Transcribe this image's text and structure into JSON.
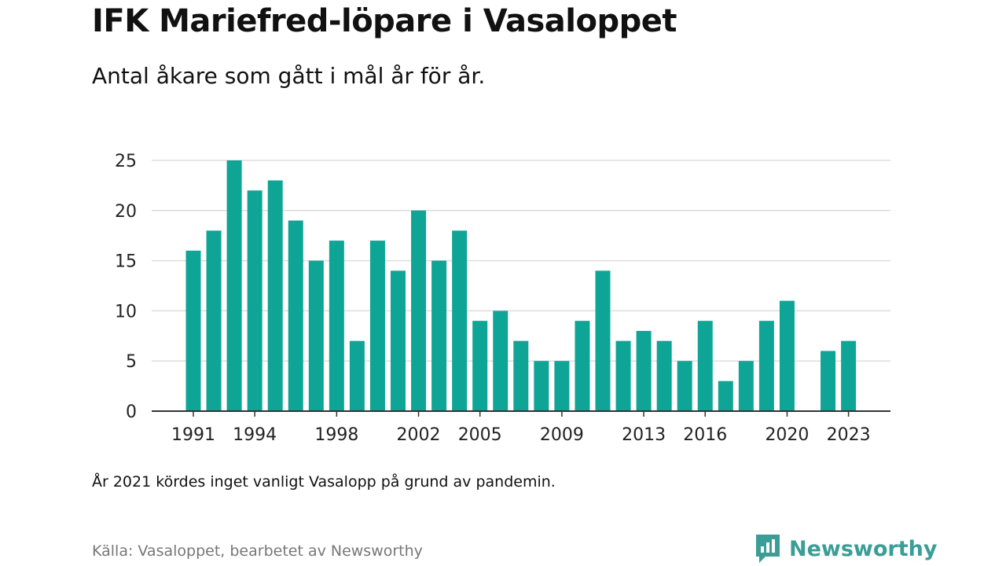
{
  "title": "IFK Mariefred-löpare i Vasaloppet",
  "subtitle": "Antal åkare som gått i mål år för år.",
  "note": "År 2021 kördes inget vanligt Vasalopp på grund av pandemin.",
  "source": "Källa: Vasaloppet, bearbetet av Newsworthy",
  "brand": {
    "name": "Newsworthy",
    "icon": "newsworthy-logo-icon"
  },
  "colors": {
    "bar": "#0fa596",
    "grid": "#dddddd",
    "axis": "#333333",
    "brand": "#3a9e96"
  },
  "chart_data": {
    "type": "bar",
    "x": [
      1991,
      1992,
      1993,
      1994,
      1995,
      1996,
      1997,
      1998,
      1999,
      2000,
      2001,
      2002,
      2003,
      2004,
      2005,
      2006,
      2007,
      2008,
      2009,
      2010,
      2011,
      2012,
      2013,
      2014,
      2015,
      2016,
      2017,
      2018,
      2019,
      2020,
      2021,
      2022,
      2023
    ],
    "values": [
      16,
      18,
      25,
      22,
      23,
      19,
      15,
      17,
      7,
      17,
      14,
      20,
      15,
      18,
      9,
      10,
      7,
      5,
      5,
      9,
      14,
      7,
      8,
      7,
      5,
      9,
      3,
      5,
      9,
      11,
      null,
      6,
      7
    ],
    "xticks": [
      1991,
      1994,
      1998,
      2002,
      2005,
      2009,
      2013,
      2016,
      2020,
      2023
    ],
    "yticks": [
      0,
      5,
      10,
      15,
      20,
      25
    ],
    "ylim": [
      0,
      25
    ],
    "grid": true,
    "legend": "none"
  }
}
